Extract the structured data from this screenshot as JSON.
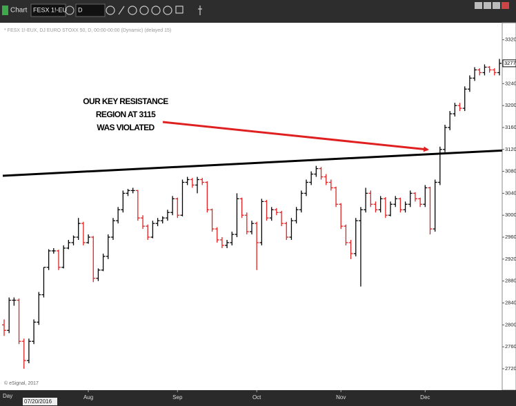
{
  "app": {
    "window_title": "Chart",
    "symbol": "FESX 1!-EU",
    "interval": "D"
  },
  "chart_data": {
    "type": "ohlc",
    "subtitle": "* FESX 1!-EUX, DJ EURO STOXX 50, D, 00:00-00:00 (Dynamic) (delayed 15)",
    "annotation": [
      "OUR KEY RESISTANCE",
      "REGION  AT  3115",
      "WAS VIOLATED"
    ],
    "footer": "© eSignal, 2017",
    "x_unit": "Day",
    "start_date": "07/20/2016",
    "x_labels": [
      {
        "label": "Aug",
        "index": 17
      },
      {
        "label": "Sep",
        "index": 35
      },
      {
        "label": "Oct",
        "index": 51
      },
      {
        "label": "Nov",
        "index": 68
      },
      {
        "label": "Dec",
        "index": 85
      }
    ],
    "up_color": "#000000",
    "down_color": "#e02020",
    "trendline": {
      "values": [
        3072,
        3118
      ],
      "color": "#000000"
    },
    "arrow_color": "#e02020",
    "ylim": [
      2681,
      3351
    ],
    "yticks": [
      2720,
      2760,
      2800,
      2840,
      2880,
      2920,
      2960,
      3000,
      3040,
      3080,
      3120,
      3160,
      3200,
      3240,
      3320
    ],
    "last_price": 3277,
    "bars": [
      [
        2800,
        2810,
        2780,
        2790
      ],
      [
        2790,
        2850,
        2785,
        2845
      ],
      [
        2845,
        2850,
        2835,
        2845
      ],
      [
        2845,
        2848,
        2765,
        2770
      ],
      [
        2770,
        2775,
        2720,
        2735
      ],
      [
        2735,
        2775,
        2730,
        2770
      ],
      [
        2770,
        2810,
        2765,
        2805
      ],
      [
        2805,
        2860,
        2800,
        2855
      ],
      [
        2855,
        2905,
        2850,
        2905
      ],
      [
        2905,
        2938,
        2900,
        2935
      ],
      [
        2935,
        2940,
        2930,
        2935
      ],
      [
        2935,
        2937,
        2900,
        2905
      ],
      [
        2905,
        2945,
        2903,
        2940
      ],
      [
        2940,
        2955,
        2938,
        2950
      ],
      [
        2950,
        2963,
        2945,
        2960
      ],
      [
        2960,
        2995,
        2955,
        2985
      ],
      [
        2985,
        2988,
        2945,
        2950
      ],
      [
        2950,
        2965,
        2948,
        2960
      ],
      [
        2960,
        2962,
        2878,
        2885
      ],
      [
        2885,
        2903,
        2880,
        2900
      ],
      [
        2900,
        2930,
        2898,
        2925
      ],
      [
        2925,
        2965,
        2920,
        2960
      ],
      [
        2960,
        2995,
        2955,
        2990
      ],
      [
        2990,
        3015,
        2985,
        3010
      ],
      [
        3010,
        3045,
        3005,
        3040
      ],
      [
        3040,
        3048,
        3035,
        3045
      ],
      [
        3045,
        3050,
        3040,
        3045
      ],
      [
        3045,
        3046,
        2990,
        2995
      ],
      [
        2995,
        3000,
        2975,
        2980
      ],
      [
        2980,
        2983,
        2955,
        2960
      ],
      [
        2960,
        2990,
        2958,
        2985
      ],
      [
        2985,
        2995,
        2980,
        2990
      ],
      [
        2990,
        2998,
        2985,
        2995
      ],
      [
        2995,
        3010,
        2990,
        3005
      ],
      [
        3005,
        3035,
        3000,
        3030
      ],
      [
        3030,
        3032,
        2995,
        3000
      ],
      [
        3000,
        3065,
        2998,
        3060
      ],
      [
        3060,
        3070,
        3055,
        3065
      ],
      [
        3065,
        3068,
        3050,
        3055
      ],
      [
        3055,
        3070,
        3040,
        3065
      ],
      [
        3065,
        3068,
        3055,
        3060
      ],
      [
        3060,
        3062,
        3005,
        3010
      ],
      [
        3010,
        3012,
        2970,
        2975
      ],
      [
        2975,
        2978,
        2950,
        2955
      ],
      [
        2955,
        2960,
        2940,
        2945
      ],
      [
        2945,
        2955,
        2940,
        2950
      ],
      [
        2950,
        2970,
        2945,
        2965
      ],
      [
        2965,
        3040,
        2960,
        3030
      ],
      [
        3030,
        3032,
        2995,
        3000
      ],
      [
        3000,
        3005,
        2965,
        2970
      ],
      [
        2970,
        2990,
        2965,
        2985
      ],
      [
        2985,
        2988,
        2900,
        2950
      ],
      [
        2950,
        3030,
        2945,
        3025
      ],
      [
        3025,
        3028,
        2990,
        2995
      ],
      [
        2995,
        3015,
        2990,
        3010
      ],
      [
        3010,
        3013,
        3000,
        3005
      ],
      [
        3005,
        3008,
        2980,
        2985
      ],
      [
        2985,
        2988,
        2955,
        2960
      ],
      [
        2960,
        2995,
        2955,
        2990
      ],
      [
        2990,
        3015,
        2985,
        3010
      ],
      [
        3010,
        3045,
        3005,
        3040
      ],
      [
        3040,
        3065,
        3035,
        3060
      ],
      [
        3060,
        3080,
        3055,
        3075
      ],
      [
        3075,
        3090,
        3070,
        3085
      ],
      [
        3085,
        3088,
        3065,
        3070
      ],
      [
        3070,
        3075,
        3055,
        3060
      ],
      [
        3060,
        3065,
        3045,
        3050
      ],
      [
        3050,
        3052,
        3015,
        3020
      ],
      [
        3020,
        3022,
        2975,
        2980
      ],
      [
        2980,
        2983,
        2945,
        2950
      ],
      [
        2950,
        2955,
        2920,
        2930
      ],
      [
        2930,
        2995,
        2925,
        2990
      ],
      [
        2990,
        3015,
        2870,
        3010
      ],
      [
        3010,
        3050,
        3005,
        3040
      ],
      [
        3040,
        3045,
        3015,
        3020
      ],
      [
        3020,
        3025,
        3005,
        3010
      ],
      [
        3010,
        3035,
        3005,
        3030
      ],
      [
        3030,
        3033,
        2995,
        3000
      ],
      [
        3000,
        3025,
        2998,
        3020
      ],
      [
        3020,
        3035,
        3015,
        3030
      ],
      [
        3030,
        3032,
        3005,
        3010
      ],
      [
        3010,
        3025,
        3005,
        3020
      ],
      [
        3020,
        3045,
        3015,
        3040
      ],
      [
        3040,
        3042,
        3025,
        3030
      ],
      [
        3030,
        3032,
        3015,
        3020
      ],
      [
        3020,
        3055,
        3015,
        3050
      ],
      [
        3050,
        3052,
        2965,
        2975
      ],
      [
        2975,
        3065,
        2970,
        3060
      ],
      [
        3060,
        3125,
        3055,
        3120
      ],
      [
        3120,
        3165,
        3115,
        3160
      ],
      [
        3160,
        3190,
        3155,
        3185
      ],
      [
        3185,
        3205,
        3180,
        3200
      ],
      [
        3200,
        3205,
        3190,
        3195
      ],
      [
        3195,
        3235,
        3190,
        3230
      ],
      [
        3230,
        3255,
        3225,
        3250
      ],
      [
        3250,
        3270,
        3245,
        3265
      ],
      [
        3265,
        3268,
        3255,
        3260
      ],
      [
        3260,
        3275,
        3255,
        3270
      ],
      [
        3270,
        3272,
        3260,
        3265
      ],
      [
        3265,
        3268,
        3255,
        3260
      ],
      [
        3260,
        3285,
        3255,
        3277
      ]
    ]
  }
}
